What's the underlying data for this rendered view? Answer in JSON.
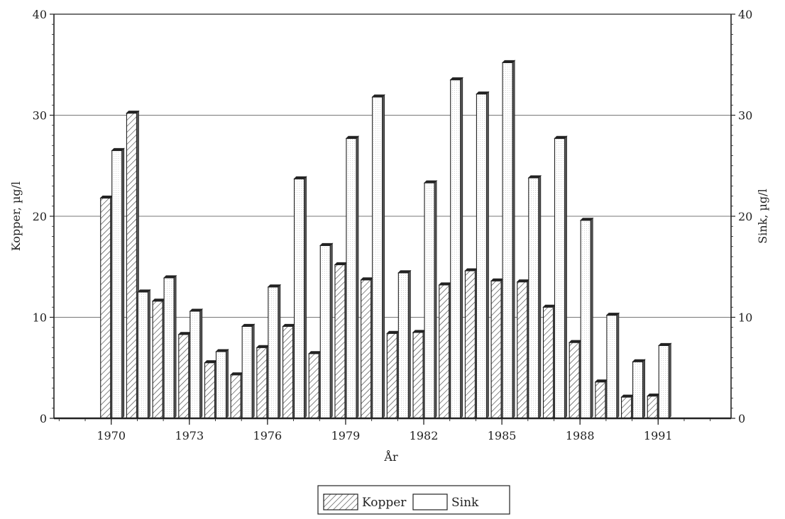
{
  "chart_data": {
    "type": "bar",
    "xlabel": "År",
    "ylabel_left": "Kopper, µg/l",
    "ylabel_right": "Sink, µg/l",
    "ylim": [
      0,
      40
    ],
    "yticks": [
      0,
      10,
      20,
      30,
      40
    ],
    "xlim": [
      1967.8,
      1993.8
    ],
    "xtick_labels": [
      "1970",
      "1973",
      "1976",
      "1979",
      "1982",
      "1985",
      "1988",
      "1991"
    ],
    "grid": "horizontal",
    "categories": [
      "1970",
      "1971",
      "1972",
      "1973",
      "1974",
      "1975",
      "1976",
      "1977",
      "1978",
      "1979",
      "1980",
      "1981",
      "1982",
      "1983",
      "1984",
      "1985",
      "1986",
      "1987",
      "1988",
      "1989",
      "1990",
      "1991"
    ],
    "series": [
      {
        "name": "Kopper",
        "pattern": "hatched",
        "values": [
          21.8,
          30.2,
          11.6,
          8.3,
          5.5,
          4.3,
          7.0,
          9.1,
          6.4,
          15.2,
          13.7,
          8.4,
          8.5,
          13.2,
          14.6,
          13.6,
          13.5,
          11.0,
          7.5,
          3.6,
          2.1,
          2.2
        ]
      },
      {
        "name": "Sink",
        "pattern": "dotted",
        "values": [
          26.5,
          12.5,
          13.9,
          10.6,
          6.6,
          9.1,
          13.0,
          23.7,
          17.1,
          27.7,
          31.8,
          14.4,
          23.3,
          33.5,
          32.1,
          35.2,
          23.8,
          27.7,
          19.6,
          10.2,
          5.6,
          7.2
        ]
      }
    ],
    "legend": {
      "position": "bottom-center",
      "labels": [
        "Kopper",
        "Sink"
      ]
    }
  }
}
